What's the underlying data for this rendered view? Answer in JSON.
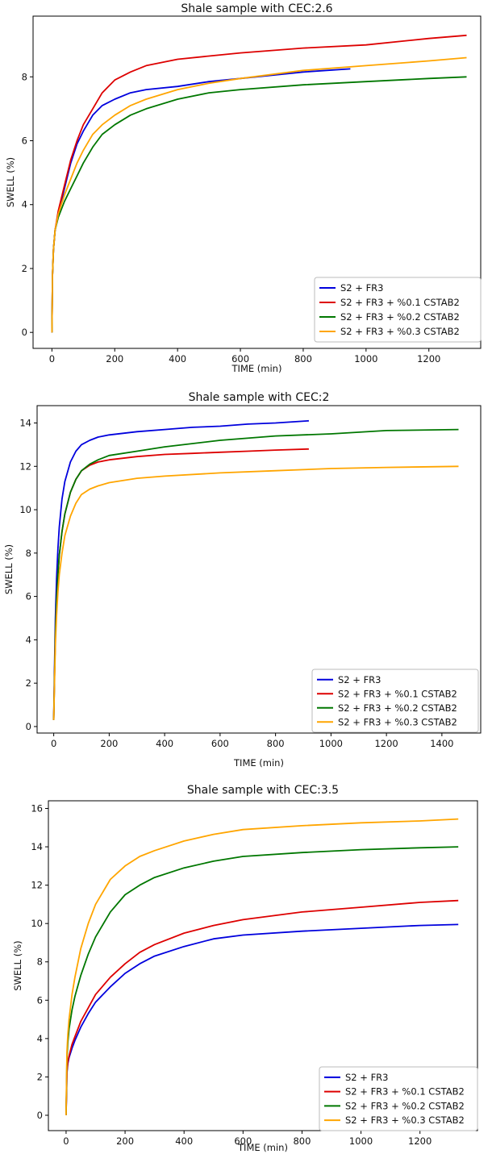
{
  "chart_data": [
    {
      "type": "line",
      "title": "Shale sample with CEC:2.6",
      "xlabel": "TIME (min)",
      "ylabel": "SWELL (%)",
      "xlim": [
        -60,
        1365
      ],
      "ylim": [
        -0.5,
        9.9
      ],
      "xticks": [
        0,
        200,
        400,
        600,
        800,
        1000,
        1200
      ],
      "yticks": [
        0,
        2,
        4,
        6,
        8
      ],
      "grid": false,
      "legend_position": "lower-right",
      "series": [
        {
          "name": "S2 + FR3",
          "color": "#0000dd",
          "x": [
            0,
            2,
            5,
            10,
            20,
            40,
            60,
            80,
            100,
            130,
            160,
            200,
            250,
            300,
            400,
            500,
            600,
            700,
            800,
            950
          ],
          "y": [
            0,
            1.8,
            2.6,
            3.2,
            3.7,
            4.5,
            5.3,
            5.9,
            6.3,
            6.8,
            7.1,
            7.3,
            7.5,
            7.6,
            7.7,
            7.85,
            7.95,
            8.05,
            8.15,
            8.25
          ]
        },
        {
          "name": "S2 + FR3 + %0.1 CSTAB2",
          "color": "#dd0000",
          "x": [
            0,
            2,
            5,
            10,
            20,
            40,
            60,
            80,
            100,
            130,
            160,
            200,
            250,
            300,
            400,
            500,
            600,
            800,
            1000,
            1200,
            1320
          ],
          "y": [
            0,
            1.8,
            2.6,
            3.2,
            3.8,
            4.6,
            5.4,
            6.0,
            6.5,
            7.0,
            7.5,
            7.9,
            8.15,
            8.35,
            8.55,
            8.65,
            8.75,
            8.9,
            9.0,
            9.2,
            9.3
          ]
        },
        {
          "name": "S2 + FR3 + %0.2 CSTAB2",
          "color": "#007700",
          "x": [
            0,
            2,
            5,
            10,
            20,
            40,
            60,
            80,
            100,
            130,
            160,
            200,
            250,
            300,
            400,
            500,
            600,
            800,
            1000,
            1200,
            1320
          ],
          "y": [
            0,
            1.8,
            2.6,
            3.2,
            3.6,
            4.1,
            4.5,
            4.9,
            5.3,
            5.8,
            6.2,
            6.5,
            6.8,
            7.0,
            7.3,
            7.5,
            7.6,
            7.75,
            7.85,
            7.95,
            8.0
          ]
        },
        {
          "name": "S2 + FR3 + %0.3 CSTAB2",
          "color": "#ffa500",
          "x": [
            0,
            2,
            5,
            10,
            20,
            40,
            60,
            80,
            100,
            130,
            160,
            200,
            250,
            300,
            400,
            500,
            600,
            800,
            1000,
            1200,
            1320
          ],
          "y": [
            0,
            1.8,
            2.6,
            3.2,
            3.7,
            4.3,
            4.8,
            5.3,
            5.7,
            6.2,
            6.5,
            6.8,
            7.1,
            7.3,
            7.6,
            7.8,
            7.95,
            8.2,
            8.35,
            8.5,
            8.6
          ]
        }
      ]
    },
    {
      "type": "line",
      "title": "Shale sample with CEC:2",
      "xlabel": "TIME (min)",
      "ylabel": "SWELL (%)",
      "xlim": [
        -60,
        1540
      ],
      "ylim": [
        -0.3,
        14.8
      ],
      "xticks": [
        0,
        200,
        400,
        600,
        800,
        1000,
        1200,
        1400
      ],
      "yticks": [
        0,
        2,
        4,
        6,
        8,
        10,
        12,
        14
      ],
      "grid": false,
      "legend_position": "lower-right",
      "series": [
        {
          "name": "S2 + FR3",
          "color": "#0000dd",
          "x": [
            0,
            3,
            6,
            10,
            15,
            20,
            30,
            40,
            60,
            80,
            100,
            130,
            160,
            200,
            300,
            400,
            500,
            600,
            700,
            800,
            920
          ],
          "y": [
            0.3,
            3.0,
            5.0,
            6.8,
            8.2,
            9.2,
            10.5,
            11.3,
            12.2,
            12.7,
            13.0,
            13.2,
            13.35,
            13.45,
            13.6,
            13.7,
            13.8,
            13.85,
            13.95,
            14.0,
            14.1
          ]
        },
        {
          "name": "S2 + FR3 + %0.1 CSTAB2",
          "color": "#dd0000",
          "x": [
            0,
            3,
            6,
            10,
            15,
            20,
            30,
            40,
            60,
            80,
            100,
            130,
            160,
            200,
            300,
            400,
            500,
            600,
            700,
            800,
            920
          ],
          "y": [
            0.3,
            2.5,
            4.3,
            5.8,
            7.0,
            7.9,
            9.0,
            9.8,
            10.8,
            11.4,
            11.8,
            12.05,
            12.2,
            12.3,
            12.45,
            12.55,
            12.6,
            12.65,
            12.7,
            12.75,
            12.8
          ]
        },
        {
          "name": "S2 + FR3 + %0.2 CSTAB2",
          "color": "#007700",
          "x": [
            0,
            3,
            6,
            10,
            15,
            20,
            30,
            40,
            60,
            80,
            100,
            130,
            160,
            200,
            300,
            400,
            600,
            800,
            1000,
            1200,
            1460
          ],
          "y": [
            0.3,
            2.5,
            4.3,
            5.8,
            7.0,
            7.9,
            9.0,
            9.8,
            10.8,
            11.4,
            11.8,
            12.1,
            12.3,
            12.5,
            12.7,
            12.9,
            13.2,
            13.4,
            13.5,
            13.65,
            13.7
          ]
        },
        {
          "name": "S2 + FR3 + %0.3 CSTAB2",
          "color": "#ffa500",
          "x": [
            0,
            3,
            6,
            10,
            15,
            20,
            30,
            40,
            60,
            80,
            100,
            130,
            160,
            200,
            300,
            400,
            600,
            800,
            1000,
            1200,
            1460
          ],
          "y": [
            0.3,
            2.2,
            3.8,
            5.1,
            6.2,
            7.0,
            8.0,
            8.8,
            9.7,
            10.3,
            10.7,
            10.95,
            11.1,
            11.25,
            11.45,
            11.55,
            11.7,
            11.8,
            11.9,
            11.95,
            12.0
          ]
        }
      ]
    },
    {
      "type": "line",
      "title": "Shale sample with CEC:3.5",
      "xlabel": "TIME (min)",
      "ylabel": "SWELL (%)",
      "xlim": [
        -60,
        1395
      ],
      "ylim": [
        -0.8,
        16.4
      ],
      "xticks": [
        0,
        200,
        400,
        600,
        800,
        1000,
        1200
      ],
      "yticks": [
        0,
        2,
        4,
        6,
        8,
        10,
        12,
        14,
        16
      ],
      "grid": false,
      "legend_position": "lower-right",
      "series": [
        {
          "name": "S2 + FR3",
          "color": "#0000dd",
          "x": [
            0,
            3,
            6,
            10,
            20,
            30,
            50,
            75,
            100,
            150,
            200,
            250,
            300,
            400,
            500,
            600,
            800,
            1000,
            1200,
            1330
          ],
          "y": [
            0,
            2.2,
            2.7,
            3.0,
            3.5,
            3.9,
            4.6,
            5.3,
            5.9,
            6.7,
            7.4,
            7.9,
            8.3,
            8.8,
            9.2,
            9.4,
            9.6,
            9.75,
            9.9,
            9.95
          ]
        },
        {
          "name": "S2 + FR3 + %0.1 CSTAB2",
          "color": "#dd0000",
          "x": [
            0,
            3,
            6,
            10,
            20,
            30,
            50,
            75,
            100,
            150,
            200,
            250,
            300,
            400,
            500,
            600,
            800,
            1000,
            1200,
            1330
          ],
          "y": [
            0,
            2.3,
            2.8,
            3.1,
            3.7,
            4.1,
            4.9,
            5.6,
            6.3,
            7.2,
            7.9,
            8.5,
            8.9,
            9.5,
            9.9,
            10.2,
            10.6,
            10.85,
            11.1,
            11.2
          ]
        },
        {
          "name": "S2 + FR3 + %0.2 CSTAB2",
          "color": "#007700",
          "x": [
            0,
            3,
            6,
            10,
            20,
            30,
            50,
            75,
            100,
            150,
            200,
            250,
            300,
            400,
            500,
            600,
            800,
            1000,
            1200,
            1330
          ],
          "y": [
            0,
            3.0,
            3.8,
            4.5,
            5.5,
            6.2,
            7.3,
            8.4,
            9.3,
            10.6,
            11.5,
            12.0,
            12.4,
            12.9,
            13.25,
            13.5,
            13.7,
            13.85,
            13.95,
            14.0
          ]
        },
        {
          "name": "S2 + FR3 + %0.3 CSTAB2",
          "color": "#ffa500",
          "x": [
            0,
            3,
            6,
            10,
            20,
            30,
            50,
            75,
            100,
            150,
            200,
            250,
            300,
            400,
            500,
            600,
            800,
            1000,
            1200,
            1330
          ],
          "y": [
            0,
            3.3,
            4.2,
            5.0,
            6.3,
            7.2,
            8.7,
            10.0,
            11.0,
            12.3,
            13.0,
            13.5,
            13.8,
            14.3,
            14.65,
            14.9,
            15.1,
            15.25,
            15.35,
            15.45
          ]
        }
      ]
    }
  ]
}
